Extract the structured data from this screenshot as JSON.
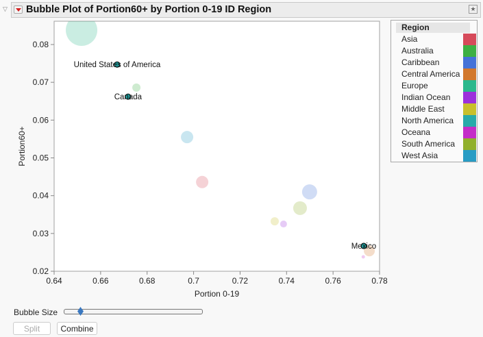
{
  "header": {
    "title": "Bubble Plot of Portion60+  by Portion 0-19 ID Region"
  },
  "chart_data": {
    "type": "scatter",
    "subtype": "bubble",
    "title": "Bubble Plot of Portion60+  by Portion 0-19 ID Region",
    "xlabel": "Portion 0-19",
    "ylabel": "Portion60+",
    "xlim": [
      0.64,
      0.78
    ],
    "ylim": [
      0.02,
      0.085
    ],
    "xticks": [
      "0.64",
      "0.66",
      "0.68",
      "0.7",
      "0.72",
      "0.74",
      "0.76",
      "0.78"
    ],
    "yticks": [
      "0.02",
      "0.03",
      "0.04",
      "0.05",
      "0.06",
      "0.07",
      "0.08"
    ],
    "grid": false,
    "legend": {
      "title": "Region",
      "placement": "right",
      "items": [
        {
          "name": "Asia",
          "color": "#d64a5a"
        },
        {
          "name": "Australia",
          "color": "#3cb043"
        },
        {
          "name": "Caribbean",
          "color": "#4472d8"
        },
        {
          "name": "Central America",
          "color": "#d2782c"
        },
        {
          "name": "Europe",
          "color": "#2ab88c"
        },
        {
          "name": "Indian Ocean",
          "color": "#9c30dc"
        },
        {
          "name": "Middle East",
          "color": "#c8c02c"
        },
        {
          "name": "North America",
          "color": "#28aaaa"
        },
        {
          "name": "Oceana",
          "color": "#c42cc8"
        },
        {
          "name": "South America",
          "color": "#90b02c"
        },
        {
          "name": "West Asia",
          "color": "#289cc4"
        }
      ]
    },
    "points": [
      {
        "x": 0.6518,
        "y": 0.0838,
        "size": 23,
        "region": "Europe"
      },
      {
        "x": 0.6754,
        "y": 0.0686,
        "size": 6,
        "region": "Australia"
      },
      {
        "x": 0.6972,
        "y": 0.0555,
        "size": 9,
        "region": "West Asia"
      },
      {
        "x": 0.7037,
        "y": 0.0436,
        "size": 9,
        "region": "Asia"
      },
      {
        "x": 0.7499,
        "y": 0.041,
        "size": 11,
        "region": "Caribbean"
      },
      {
        "x": 0.7458,
        "y": 0.0367,
        "size": 10,
        "region": "South America"
      },
      {
        "x": 0.7349,
        "y": 0.0332,
        "size": 6,
        "region": "Middle East"
      },
      {
        "x": 0.7387,
        "y": 0.0325,
        "size": 5,
        "region": "Indian Ocean"
      },
      {
        "x": 0.7756,
        "y": 0.0254,
        "size": 8,
        "region": "Central America"
      },
      {
        "x": 0.773,
        "y": 0.0238,
        "size": 2.5,
        "region": "Oceana"
      },
      {
        "x": 0.6671,
        "y": 0.0747,
        "size": 4,
        "region": "North America",
        "label": "United States of America",
        "selected": true
      },
      {
        "x": 0.6718,
        "y": 0.0662,
        "size": 4,
        "region": "North America",
        "label": "Canada",
        "selected": true
      },
      {
        "x": 0.7732,
        "y": 0.0267,
        "size": 4,
        "region": "North America",
        "label": "Mexico",
        "selected": true
      }
    ]
  },
  "controls": {
    "bubble_size_label": "Bubble Size",
    "bubble_size_value": 0.12,
    "split_label": "Split",
    "combine_label": "Combine"
  }
}
